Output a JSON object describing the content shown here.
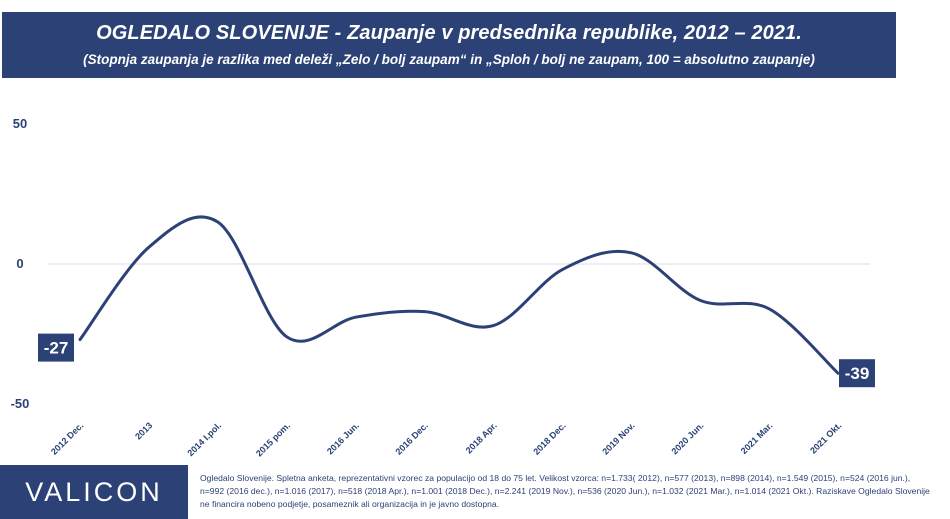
{
  "header": {
    "title": "OGLEDALO SLOVENIJE - Zaupanje v predsednika republike, 2012 – 2021.",
    "subtitle": "(Stopnja zaupanja je razlika med deleži „Zelo / bolj zaupam“ in „Sploh / bolj ne zaupam, 100 = absolutno zaupanje)"
  },
  "colors": {
    "brand": "#2c4276",
    "line": "#2c4276",
    "grid": "#d9dde6"
  },
  "chart_data": {
    "type": "line",
    "title": "OGLEDALO SLOVENIJE - Zaupanje v predsednika republike, 2012 – 2021.",
    "subtitle": "(Stopnja zaupanja je razlika med deleži „Zelo / bolj zaupam“ in „Sploh / bolj ne zaupam, 100 = absolutno zaupanje)",
    "categories": [
      "2012 Dec.",
      "2013",
      "2014 I.pol.",
      "2015 pom.",
      "2016 Jun.",
      "2016 Dec.",
      "2018 Apr.",
      "2018 Dec.",
      "2019 Nov.",
      "2020 Jun.",
      "2021 Mar.",
      "2021 Okt."
    ],
    "series": [
      {
        "name": "",
        "values": [
          -27,
          6,
          15,
          -26,
          -19,
          -17,
          -22,
          -2,
          4,
          -13,
          -16,
          -39
        ]
      }
    ],
    "ylim": [
      -50,
      50
    ],
    "yticks": [
      50,
      0,
      -50
    ],
    "data_labels": [
      {
        "index": 0,
        "text": "-27"
      },
      {
        "index": 11,
        "text": "-39"
      }
    ],
    "grid": false,
    "zero_line": true,
    "legend": "none"
  },
  "footer": {
    "logo": "VALICON",
    "note": "Ogledalo Slovenije. Spletna anketa, reprezentativni vzorec za populacijo od 18 do 75 let. Velikost vzorca: n=1.733( 2012), n=577 (2013), n=898 (2014), n=1.549 (2015), n=524 (2016 jun.), n=992 (2016 dec.), n=1.016 (2017), n=518 (2018 Apr.), n=1.001 (2018 Dec.), n=2.241 (2019 Nov.), n=536 (2020 Jun.), n=1.032 (2021 Mar.), n=1.014 (2021 Okt.). Raziskave Ogledalo Slovenije ne financira nobeno podjetje, posameznik ali organizacija in je javno dostopna."
  }
}
